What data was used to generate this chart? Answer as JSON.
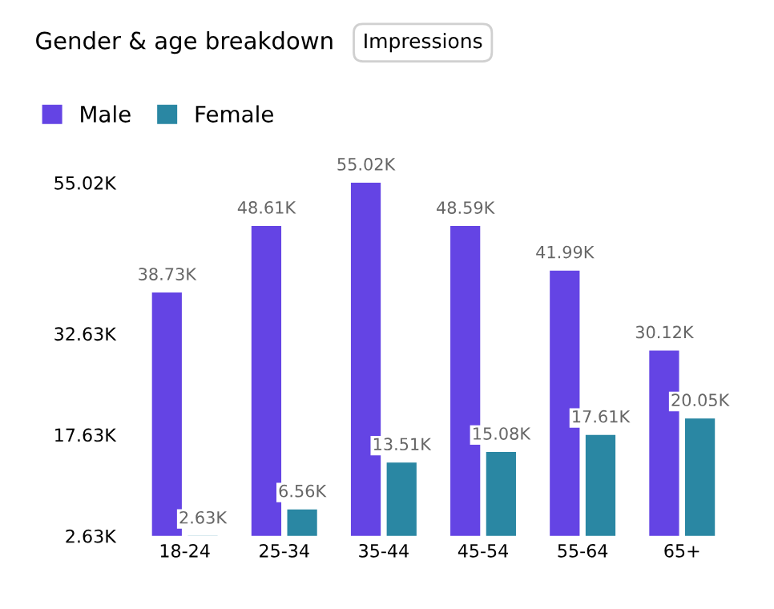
{
  "chart_data": {
    "type": "bar",
    "title": "Gender & age breakdown",
    "subtitle": "Impressions",
    "categories": [
      "18-24",
      "25-34",
      "35-44",
      "45-54",
      "55-64",
      "65+"
    ],
    "series": [
      {
        "name": "Male",
        "color": "#6444e4",
        "values": [
          38.73,
          48.61,
          55.02,
          48.59,
          41.99,
          30.12
        ],
        "value_labels": [
          "38.73K",
          "48.61K",
          "55.02K",
          "48.59K",
          "41.99K",
          "30.12K"
        ]
      },
      {
        "name": "Female",
        "color": "#2a87a3",
        "values": [
          2.63,
          6.56,
          13.51,
          15.08,
          17.61,
          20.05
        ],
        "value_labels": [
          "2.63K",
          "6.56K",
          "13.51K",
          "15.08K",
          "17.61K",
          "20.05K"
        ]
      }
    ],
    "ylim": [
      2.63,
      55.02
    ],
    "yticks": [
      {
        "value": 2.63,
        "label": "2.63K"
      },
      {
        "value": 17.63,
        "label": "17.63K"
      },
      {
        "value": 32.63,
        "label": "32.63K"
      },
      {
        "value": 55.02,
        "label": "55.02K"
      }
    ],
    "grid": false,
    "legend": "top left"
  }
}
